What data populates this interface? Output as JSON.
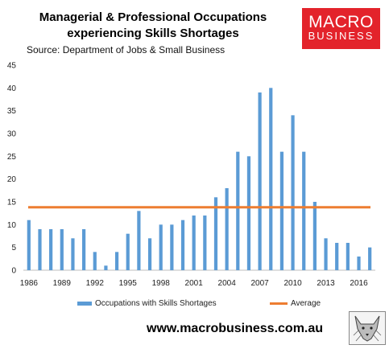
{
  "title_line1": "Managerial & Professional Occupations",
  "title_line2": "experiencing Skills Shortages",
  "source": "Source: Department of Jobs & Small Business",
  "logo": {
    "line1": "MACRO",
    "line2": "BUSINESS",
    "background_color": "#e3232b"
  },
  "footer": "www.macrobusiness.com.au",
  "chart_data": {
    "type": "bar",
    "categories": [
      "1986",
      "1987",
      "1988",
      "1989",
      "1990",
      "1991",
      "1992",
      "1993",
      "1994",
      "1995",
      "1996",
      "1997",
      "1998",
      "1999",
      "2000",
      "2001",
      "2002",
      "2003",
      "2004",
      "2005",
      "2006",
      "2007",
      "2008",
      "2009",
      "2010",
      "2011",
      "2012",
      "2013",
      "2014",
      "2015",
      "2016",
      "2017"
    ],
    "x_tick_labels": [
      "1986",
      "1989",
      "1992",
      "1995",
      "1998",
      "2001",
      "2004",
      "2007",
      "2010",
      "2013",
      "2016"
    ],
    "series": [
      {
        "name": "Occupations with Skills Shortages",
        "type": "bar",
        "color": "#5b9bd5",
        "values": [
          11,
          9,
          9,
          9,
          7,
          9,
          4,
          1,
          4,
          8,
          13,
          7,
          10,
          10,
          11,
          12,
          12,
          16,
          18,
          26,
          25,
          39,
          40,
          26,
          34,
          26,
          15,
          7,
          6,
          6,
          3,
          5
        ]
      },
      {
        "name": "Average",
        "type": "line",
        "color": "#ed7d31",
        "value": 13.8
      }
    ],
    "ylim": [
      0,
      45
    ],
    "y_ticks": [
      0,
      5,
      10,
      15,
      20,
      25,
      30,
      35,
      40,
      45
    ],
    "legend_position": "bottom",
    "grid": false
  }
}
